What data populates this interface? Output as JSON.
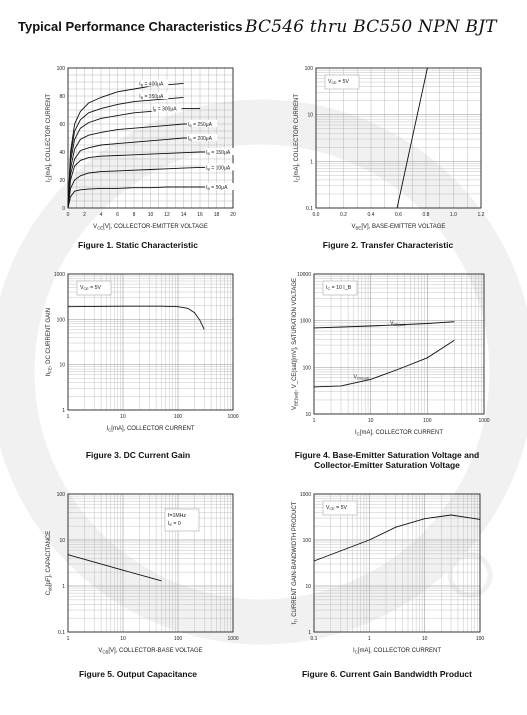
{
  "header": {
    "title": "Typical Performance Characteristics",
    "subtitle": "BC546 thru BC550  NPN BJT"
  },
  "figures": [
    {
      "caption": "Figure 1. Static Characteristic",
      "xlabel": "V_CE[V], COLLECTOR-EMITTER VOLTAGE",
      "ylabel": "I_C[mA], COLLECTOR CURRENT",
      "annotation": "",
      "xticks": [
        "0",
        "2",
        "4",
        "6",
        "8",
        "10",
        "12",
        "14",
        "16",
        "18",
        "20"
      ],
      "yticks": [
        "0",
        "20",
        "40",
        "60",
        "80",
        "100"
      ]
    },
    {
      "caption": "Figure 2. Transfer Characteristic",
      "xlabel": "V_BE[V], BASE-EMITTER VOLTAGE",
      "ylabel": "I_C[mA], COLLECTOR CURRENT",
      "annotation": "V_CE = 5V",
      "xticks": [
        "0.0",
        "0.2",
        "0.4",
        "0.6",
        "0.8",
        "1.0",
        "1.2"
      ],
      "yticks": [
        "0.1",
        "1",
        "10",
        "100"
      ]
    },
    {
      "caption": "Figure 3. DC Current Gain",
      "xlabel": "I_C[mA], COLLECTOR CURRENT",
      "ylabel": "h_FE, DC CURRENT GAIN",
      "annotation": "V_CE = 5V",
      "xticks": [
        "1",
        "10",
        "100",
        "1000"
      ],
      "yticks": [
        "1",
        "10",
        "100",
        "1000"
      ]
    },
    {
      "caption": "Figure 4. Base-Emitter Saturation Voltage and Collector-Emitter Saturation Voltage",
      "xlabel": "I_C[mA], COLLECTOR CURRENT",
      "ylabel": "V_BE(sat), V_CE(sat)[mV], SATURATION VOLTAGE",
      "annotation": "I_C = 10 I_B",
      "xticks": [
        "1",
        "10",
        "100",
        "1000"
      ],
      "yticks": [
        "10",
        "100",
        "1000",
        "10000"
      ]
    },
    {
      "caption": "Figure 5. Output Capacitance",
      "xlabel": "V_CB[V], COLLECTOR-BASE VOLTAGE",
      "ylabel": "C_ob[pF], CAPACITANCE",
      "annotation": "f=1MHz|I_E = 0",
      "xticks": [
        "1",
        "10",
        "100",
        "1000"
      ],
      "yticks": [
        "0.1",
        "1",
        "10",
        "100"
      ]
    },
    {
      "caption": "Figure 6. Current Gain Bandwidth Product",
      "xlabel": "I_C[mA], COLLECTOR CURRENT",
      "ylabel": "f_T, CURRENT GAIN-BANDWIDTH PRODUCT",
      "annotation": "V_CE = 5V",
      "xticks": [
        "0.1",
        "1",
        "10",
        "100"
      ],
      "yticks": [
        "1",
        "10",
        "100",
        "1000"
      ]
    }
  ],
  "chart_data": [
    {
      "type": "line",
      "xlim": [
        0,
        20
      ],
      "ylim": [
        0,
        100
      ],
      "series": [
        {
          "name": "I_B = 400μA",
          "x": [
            0,
            0.3,
            0.8,
            1.5,
            2.5,
            4,
            6,
            8,
            10,
            12,
            14
          ],
          "y": [
            0,
            40,
            60,
            69,
            75,
            79,
            83,
            85,
            87,
            88,
            89
          ]
        },
        {
          "name": "I_B = 350μA",
          "x": [
            0,
            0.3,
            0.8,
            1.5,
            2.5,
            4,
            6,
            8,
            10,
            12,
            14
          ],
          "y": [
            0,
            37,
            55,
            63,
            68,
            71,
            74,
            76,
            77,
            78,
            79
          ]
        },
        {
          "name": "I_B = 300μA",
          "x": [
            0,
            0.3,
            0.8,
            1.5,
            2.5,
            4,
            6,
            8,
            10,
            12,
            14,
            16
          ],
          "y": [
            0,
            33,
            49,
            57,
            61,
            64,
            66,
            68,
            69,
            70,
            71,
            71
          ]
        },
        {
          "name": "I_B = 250μA",
          "x": [
            0,
            0.3,
            0.8,
            1.5,
            2.5,
            4,
            6,
            8,
            10,
            12,
            14,
            16
          ],
          "y": [
            0,
            28,
            42,
            49,
            52,
            54,
            56,
            57,
            58,
            59,
            60,
            60
          ]
        },
        {
          "name": "I_B = 200μA",
          "x": [
            0,
            0.3,
            0.8,
            1.5,
            2.5,
            4,
            6,
            8,
            10,
            12,
            14,
            16,
            18
          ],
          "y": [
            0,
            24,
            35,
            41,
            43,
            45,
            46,
            47,
            48,
            49,
            50,
            50,
            50
          ]
        },
        {
          "name": "I_B = 150μA",
          "x": [
            0,
            0.3,
            0.8,
            1.5,
            2.5,
            4,
            6,
            8,
            10,
            12,
            14,
            16,
            18
          ],
          "y": [
            0,
            20,
            30,
            34,
            36,
            37,
            37.5,
            38,
            38.5,
            39,
            39.5,
            40,
            40
          ]
        },
        {
          "name": "I_B = 100μA",
          "x": [
            0,
            0.3,
            0.8,
            1.5,
            2.5,
            4,
            6,
            8,
            10,
            12,
            14,
            16,
            18
          ],
          "y": [
            0,
            14,
            20,
            23,
            25,
            26,
            26.5,
            27,
            27.5,
            28,
            28.5,
            29,
            29
          ]
        },
        {
          "name": "I_B = 50μA",
          "x": [
            0,
            0.3,
            0.8,
            1.5,
            2.5,
            4,
            6,
            8,
            10,
            12,
            14,
            16,
            18
          ],
          "y": [
            0,
            8,
            12,
            13,
            13.5,
            14,
            14,
            14.5,
            14.5,
            15,
            15,
            15,
            15
          ]
        }
      ]
    },
    {
      "type": "line",
      "xlim": [
        0,
        1.2
      ],
      "ylim": [
        0.1,
        100
      ],
      "yscale": "log",
      "series": [
        {
          "x": [
            0.59,
            0.81
          ],
          "y": [
            0.1,
            100
          ]
        }
      ]
    },
    {
      "type": "line",
      "xlim": [
        1,
        1000
      ],
      "ylim": [
        1,
        1000
      ],
      "xscale": "log",
      "yscale": "log",
      "series": [
        {
          "x": [
            1,
            10,
            50,
            100,
            150,
            200,
            250,
            300
          ],
          "y": [
            190,
            195,
            195,
            190,
            175,
            140,
            95,
            60
          ]
        }
      ]
    },
    {
      "type": "line",
      "xlim": [
        1,
        1000
      ],
      "ylim": [
        10,
        10000
      ],
      "xscale": "log",
      "yscale": "log",
      "series": [
        {
          "name": "V_BE(sat)",
          "x": [
            1,
            10,
            100,
            300
          ],
          "y": [
            700,
            770,
            870,
            950
          ]
        },
        {
          "name": "V_CE(sat)",
          "x": [
            1,
            3,
            10,
            30,
            100,
            300
          ],
          "y": [
            38,
            40,
            55,
            90,
            160,
            380
          ]
        }
      ]
    },
    {
      "type": "line",
      "xlim": [
        1,
        1000
      ],
      "ylim": [
        0.1,
        100
      ],
      "xscale": "log",
      "yscale": "log",
      "series": [
        {
          "x": [
            1,
            10,
            50
          ],
          "y": [
            4.8,
            2.2,
            1.3
          ]
        }
      ]
    },
    {
      "type": "line",
      "xlim": [
        0.1,
        100
      ],
      "ylim": [
        1,
        1000
      ],
      "xscale": "log",
      "yscale": "log",
      "series": [
        {
          "x": [
            0.1,
            1,
            3,
            10,
            30,
            100
          ],
          "y": [
            35,
            100,
            190,
            290,
            350,
            280
          ]
        }
      ]
    }
  ]
}
